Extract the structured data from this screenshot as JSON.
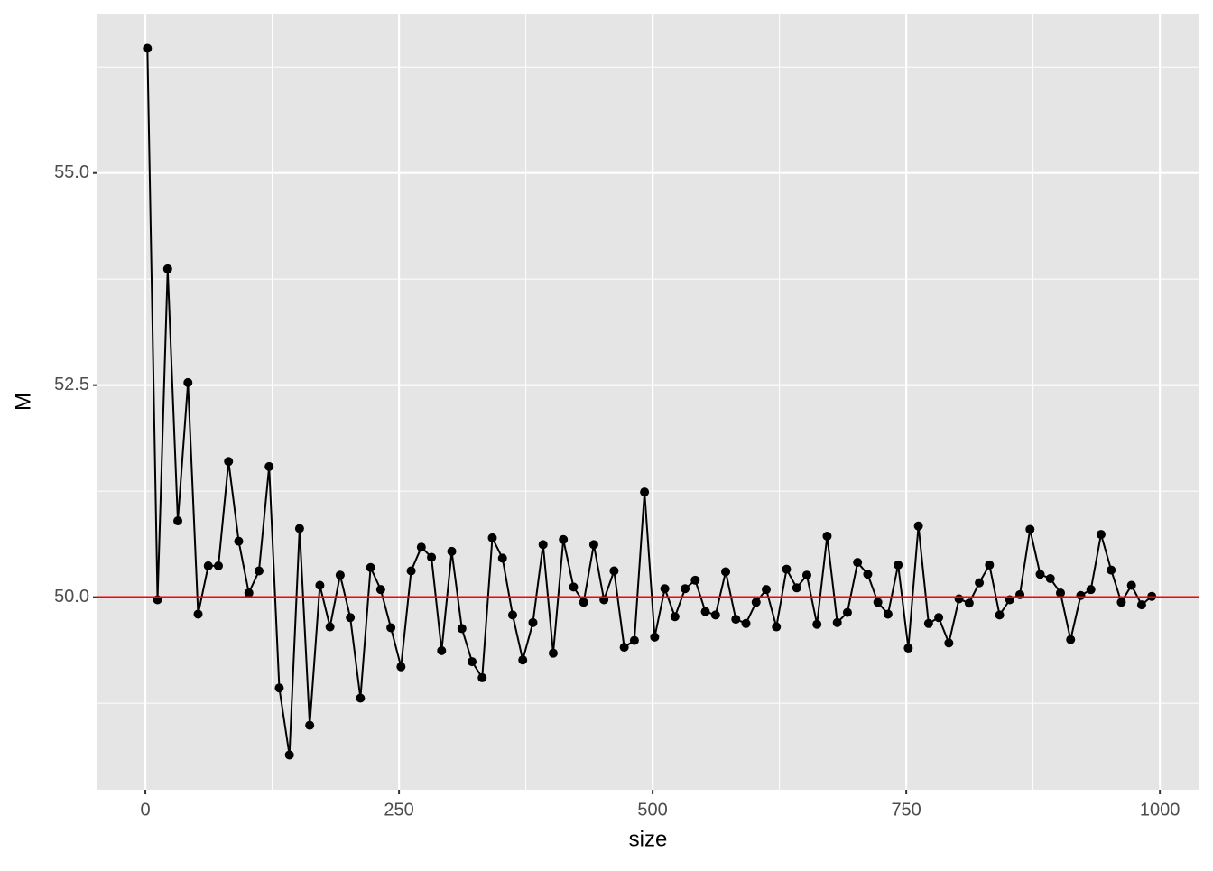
{
  "chart_data": {
    "type": "line",
    "x_label": "size",
    "y_label": "M",
    "x": [
      2,
      12,
      22,
      32,
      42,
      52,
      62,
      72,
      82,
      92,
      102,
      112,
      122,
      132,
      142,
      152,
      162,
      172,
      182,
      192,
      202,
      212,
      222,
      232,
      242,
      252,
      262,
      272,
      282,
      292,
      302,
      312,
      322,
      332,
      342,
      352,
      362,
      372,
      382,
      392,
      402,
      412,
      422,
      432,
      442,
      452,
      462,
      472,
      482,
      492,
      502,
      512,
      522,
      532,
      542,
      552,
      562,
      572,
      582,
      592,
      602,
      612,
      622,
      632,
      642,
      652,
      662,
      672,
      682,
      692,
      702,
      712,
      722,
      732,
      742,
      752,
      762,
      772,
      782,
      792,
      802,
      812,
      822,
      832,
      842,
      852,
      862,
      872,
      882,
      892,
      902,
      912,
      922,
      932,
      942,
      952,
      962,
      972,
      982,
      992
    ],
    "series": [
      {
        "color": "#000000",
        "values": [
          56.47,
          49.97,
          53.87,
          50.9,
          52.53,
          49.8,
          50.37,
          50.37,
          51.6,
          50.66,
          50.05,
          50.31,
          51.54,
          48.93,
          48.14,
          50.81,
          48.49,
          50.14,
          49.65,
          50.26,
          49.76,
          48.81,
          50.35,
          50.09,
          49.64,
          49.18,
          50.31,
          50.59,
          50.47,
          49.37,
          50.54,
          49.63,
          49.24,
          49.05,
          50.7,
          50.46,
          49.79,
          49.26,
          49.7,
          50.62,
          49.34,
          50.68,
          50.12,
          49.94,
          50.62,
          49.97,
          50.31,
          49.41,
          49.49,
          51.24,
          49.53,
          50.1,
          49.77,
          50.1,
          50.2,
          49.83,
          49.79,
          50.3,
          49.74,
          49.69,
          49.94,
          50.09,
          49.65,
          50.33,
          50.11,
          50.26,
          49.68,
          50.72,
          49.7,
          49.82,
          50.41,
          50.27,
          49.94,
          49.8,
          50.38,
          49.4,
          50.84,
          49.69,
          49.76,
          49.46,
          49.98,
          49.93,
          50.17,
          50.38,
          49.79,
          49.97,
          50.03,
          50.8,
          50.27,
          50.22,
          50.05,
          49.5,
          50.02,
          50.09,
          50.74,
          50.32,
          49.94,
          50.14,
          49.91,
          50.01
        ]
      }
    ],
    "hline": {
      "value": 50,
      "color": "#ff0000"
    },
    "xlim": [
      -47.2,
      1039
    ],
    "ylim": [
      47.73,
      56.88
    ],
    "xticks": [
      0,
      250,
      500,
      750,
      1000
    ],
    "yticks": [
      {
        "value": 50,
        "label": "50.0"
      },
      {
        "value": 52.5,
        "label": "52.5"
      },
      {
        "value": 55,
        "label": "55.0"
      }
    ],
    "grid": true,
    "minor_grid": true,
    "panel_color": "#e5e5e5"
  }
}
